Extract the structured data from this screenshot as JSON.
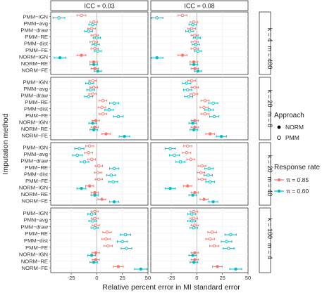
{
  "chart_data": {
    "type": "scatter",
    "title": "",
    "xlabel": "Relative percent error in MI standard error",
    "ylabel": "Imputation method",
    "xlim": [
      -45,
      50
    ],
    "x_ticks": [
      -25,
      0,
      25,
      50
    ],
    "x_tick_labels": [
      "-25",
      "0",
      "25",
      "50"
    ],
    "reference_line_x": 0,
    "grid": true,
    "column_panels": [
      "ICC = 0.03",
      "ICC = 0.08"
    ],
    "row_panels": [
      {
        "k_label": "k = 4",
        "m_label": "m = 400"
      },
      {
        "k_label": "k = 20",
        "m_label": "m = 8"
      },
      {
        "k_label": "k = 20",
        "m_label": "m = 40"
      },
      {
        "k_label": "k = 100",
        "m_label": "m = 4"
      }
    ],
    "methods": [
      "PMM−IGN",
      "PMM−avg",
      "PMM−draw",
      "PMM−RE",
      "PMM−dist",
      "PMM−FE",
      "NORM−IGN",
      "NORM−RE",
      "NORM−FE"
    ],
    "legend": {
      "placement": "right",
      "approach": {
        "title": "Approach",
        "items": [
          "NORM",
          "PMM"
        ]
      },
      "response": {
        "title": "Response rate",
        "items": [
          "π = 0.85",
          "π = 0.60"
        ]
      }
    },
    "colors": {
      "pi_085": "#F8766D",
      "pi_060": "#00BFC4",
      "refline": "#bdbdbd",
      "strip": "#ffffff"
    },
    "series": [
      {
        "name": "π = 0.85",
        "color": "#F8766D",
        "panels": [
          [
            [
              -15,
              -3,
              -5,
              -2,
              -3,
              -2,
              -15,
              -3,
              -2
            ],
            [
              -14,
              -3,
              -5,
              -2,
              -2,
              -2,
              -14,
              -3,
              -2
            ]
          ],
          [
            [
              -4,
              -3,
              -4,
              6,
              5,
              6,
              -1,
              -2,
              9
            ],
            [
              -5,
              -2,
              -3,
              8,
              7,
              8,
              -2,
              -2,
              13
            ]
          ],
          [
            [
              -7,
              -8,
              -5,
              2,
              1,
              2,
              -7,
              -2,
              5
            ],
            [
              -9,
              -10,
              -6,
              5,
              4,
              5,
              -9,
              -2,
              7
            ]
          ],
          [
            [
              -2,
              -2,
              -1,
              10,
              9,
              11,
              -1,
              -1,
              21
            ],
            [
              -3,
              -3,
              -2,
              15,
              13,
              17,
              -2,
              -2,
              20
            ]
          ]
        ]
      },
      {
        "name": "π = 0.60",
        "color": "#00BFC4",
        "panels": [
          [
            [
              -37,
              -4,
              -8,
              0,
              -1,
              1,
              -36,
              -3,
              1
            ],
            [
              -39,
              -4,
              -7,
              0,
              -1,
              1,
              -39,
              -3,
              1
            ]
          ],
          [
            [
              -7,
              -6,
              -8,
              17,
              12,
              21,
              -4,
              -3,
              27
            ],
            [
              -10,
              -9,
              -8,
              16,
              12,
              17,
              -4,
              -3,
              24
            ]
          ],
          [
            [
              -17,
              -19,
              -12,
              17,
              14,
              16,
              -15,
              -2,
              17
            ],
            [
              -26,
              -22,
              -16,
              12,
              11,
              13,
              -26,
              -4,
              16
            ]
          ],
          [
            [
              -5,
              -4,
              -2,
              28,
              25,
              29,
              -5,
              -3,
              43
            ],
            [
              -5,
              -5,
              -3,
              33,
              29,
              31,
              -4,
              -3,
              38
            ]
          ]
        ]
      }
    ]
  }
}
